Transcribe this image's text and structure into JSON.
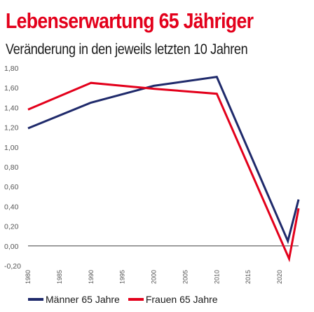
{
  "chart_data": {
    "type": "line",
    "title": "Lebenserwartung 65 Jähriger",
    "subtitle": "Veränderung in den jeweils letzten 10 Jahren",
    "xlabel": "",
    "ylabel": "",
    "xlim": [
      1980,
      2023
    ],
    "ylim": [
      -0.2,
      1.8
    ],
    "y_ticks": [
      "-0,20",
      "0,00",
      "0,20",
      "0,40",
      "0,60",
      "0,80",
      "1,00",
      "1,20",
      "1,40",
      "1,60",
      "1,80"
    ],
    "y_tick_values": [
      -0.2,
      0,
      0.2,
      0.4,
      0.6,
      0.8,
      1.0,
      1.2,
      1.4,
      1.6,
      1.8
    ],
    "x_ticks": [
      "1980",
      "1985",
      "1990",
      "1995",
      "2000",
      "2005",
      "2010",
      "2015",
      "2020"
    ],
    "x_tick_values": [
      1980,
      1985,
      1990,
      1995,
      2000,
      2005,
      2010,
      2015,
      2020
    ],
    "grid": false,
    "legend_position": "bottom-left",
    "series": [
      {
        "name": "Männer 65 Jahre",
        "color": "#1f2a6b",
        "x": [
          1980,
          1990,
          2000,
          2010,
          2021.3,
          2023
        ],
        "y": [
          1.19,
          1.45,
          1.62,
          1.71,
          0.05,
          0.47
        ]
      },
      {
        "name": "Frauen 65 Jahre",
        "color": "#e3001b",
        "x": [
          1980,
          1990,
          2000,
          2010,
          2021.5,
          2023
        ],
        "y": [
          1.38,
          1.65,
          1.59,
          1.54,
          -0.13,
          0.38
        ]
      }
    ]
  },
  "colors": {
    "title": "#e3001b",
    "axis_tick_text": "#555555",
    "zero_line": "#444444"
  }
}
